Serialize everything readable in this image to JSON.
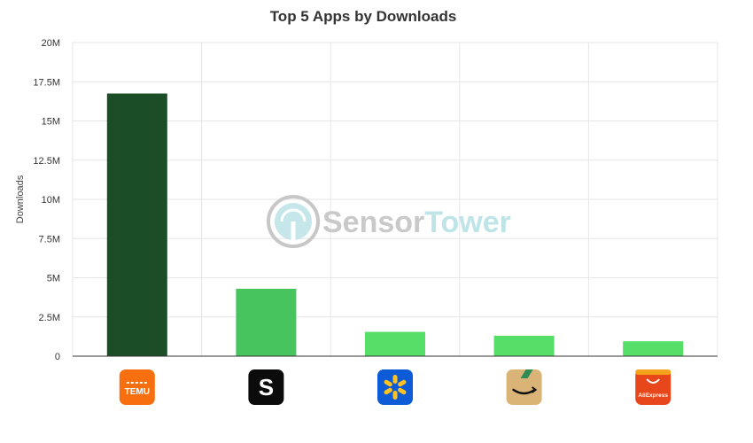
{
  "chart_data": {
    "type": "bar",
    "title": "Top 5 Apps by Downloads",
    "xlabel": "",
    "ylabel": "Downloads",
    "ylim": [
      0,
      20000000
    ],
    "yticks": [
      0,
      2500000,
      5000000,
      7500000,
      10000000,
      12500000,
      15000000,
      17500000,
      20000000
    ],
    "ytick_labels": [
      "0",
      "2.5M",
      "5M",
      "7.5M",
      "10M",
      "12.5M",
      "15M",
      "17.5M",
      "20M"
    ],
    "grid": true,
    "categories": [
      "Temu",
      "Shein",
      "Walmart",
      "Amazon Shopping",
      "AliExpress"
    ],
    "values": [
      16750000,
      4300000,
      1550000,
      1300000,
      950000
    ],
    "bar_colors": [
      "#1b4d26",
      "#48c45e",
      "#55de68",
      "#55de68",
      "#55de68"
    ]
  },
  "icons": [
    {
      "name": "temu-app-icon",
      "bg": "#f86f0f",
      "text": "TEMU"
    },
    {
      "name": "shein-app-icon",
      "bg": "#0b0b0b",
      "text": "S"
    },
    {
      "name": "walmart-app-icon",
      "bg": "#0e5bd8",
      "text": ""
    },
    {
      "name": "amazon-app-icon",
      "bg": "#d9b476",
      "text": ""
    },
    {
      "name": "aliexpress-app-icon",
      "bg": "#e8461b",
      "text": "AliExpress"
    }
  ],
  "watermark": {
    "part1": "Sensor",
    "part2": "Tower",
    "color1": "#c9c9c9",
    "color2": "#bfe4e8"
  }
}
